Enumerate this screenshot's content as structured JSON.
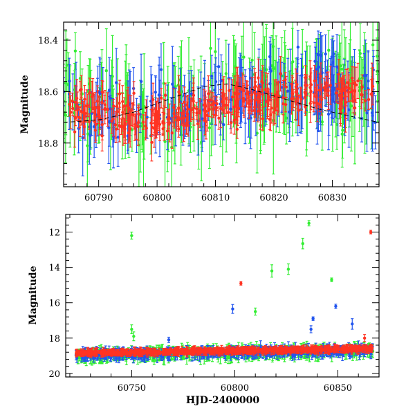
{
  "chart_data": [
    {
      "type": "scatter",
      "panel": "top",
      "title": "",
      "xlabel": "",
      "ylabel": "Magnitude",
      "xlim": [
        60784,
        60838
      ],
      "ylim": [
        18.97,
        18.33
      ],
      "y_inverted": true,
      "xticks": [
        60790,
        60800,
        60810,
        60820,
        60830
      ],
      "yticks": [
        18.4,
        18.6,
        18.8
      ],
      "grid": false,
      "legend": "none",
      "series": [
        {
          "color": "#ff3322",
          "marker": "circle-with-errorbar",
          "x_range": [
            60785,
            60837
          ],
          "y_center": 18.65,
          "y_scatter": 0.12,
          "err": 0.05
        },
        {
          "color": "#2255ee",
          "marker": "circle-with-errorbar",
          "x_range": [
            60784,
            60838
          ],
          "y_center": 18.63,
          "y_scatter": 0.2,
          "err": 0.1
        },
        {
          "color": "#33ee33",
          "marker": "circle-with-errorbar",
          "x_range": [
            60784,
            60838
          ],
          "y_center": 18.62,
          "y_scatter": 0.22,
          "err": 0.14
        }
      ],
      "model_curve": {
        "color": "#000000",
        "style": "dashed",
        "x": [
          60784,
          60790,
          60796,
          60802,
          60808,
          60812,
          60816,
          60822,
          60828,
          60834,
          60838
        ],
        "y": [
          18.72,
          18.71,
          18.68,
          18.63,
          18.58,
          18.57,
          18.59,
          18.63,
          18.67,
          18.7,
          18.72
        ]
      }
    },
    {
      "type": "scatter",
      "panel": "bottom",
      "title": "",
      "xlabel": "HJD-2400000",
      "ylabel": "Magnitude",
      "xlim": [
        60718,
        60870
      ],
      "ylim": [
        20.2,
        11.0
      ],
      "y_inverted": true,
      "xticks": [
        60750,
        60800,
        60850
      ],
      "yticks": [
        12,
        14,
        16,
        18,
        20
      ],
      "grid": false,
      "legend": "none",
      "series": [
        {
          "color": "#ff3322",
          "marker": "circle-with-errorbar",
          "x_range": [
            60723,
            60867
          ],
          "baseline": [
            [
              60723,
              18.85
            ],
            [
              60867,
              18.6
            ]
          ],
          "y_scatter": 0.15,
          "err": 0.15
        },
        {
          "color": "#2255ee",
          "marker": "circle-with-errorbar",
          "x_range": [
            60723,
            60867
          ],
          "baseline": [
            [
              60723,
              18.95
            ],
            [
              60867,
              18.7
            ]
          ],
          "y_scatter": 0.3,
          "err": 0.25
        },
        {
          "color": "#33ee33",
          "marker": "circle-with-errorbar",
          "x_range": [
            60723,
            60867
          ],
          "baseline": [
            [
              60723,
              19.0
            ],
            [
              60867,
              18.7
            ]
          ],
          "y_scatter": 0.35,
          "err": 0.3
        }
      ],
      "outliers": [
        {
          "x": 60750,
          "y": 12.2,
          "color": "#33ee33",
          "err": 0.2
        },
        {
          "x": 60750,
          "y": 17.5,
          "color": "#33ee33",
          "err": 0.25
        },
        {
          "x": 60751,
          "y": 17.9,
          "color": "#33ee33",
          "err": 0.25
        },
        {
          "x": 60768,
          "y": 18.1,
          "color": "#2255ee",
          "err": 0.15
        },
        {
          "x": 60799,
          "y": 16.35,
          "color": "#2255ee",
          "err": 0.25
        },
        {
          "x": 60803,
          "y": 14.9,
          "color": "#ff3322",
          "err": 0.1
        },
        {
          "x": 60810,
          "y": 16.5,
          "color": "#33ee33",
          "err": 0.2
        },
        {
          "x": 60818,
          "y": 14.2,
          "color": "#33ee33",
          "err": 0.35
        },
        {
          "x": 60826,
          "y": 14.1,
          "color": "#33ee33",
          "err": 0.3
        },
        {
          "x": 60833,
          "y": 12.65,
          "color": "#33ee33",
          "err": 0.3
        },
        {
          "x": 60836,
          "y": 11.5,
          "color": "#33ee33",
          "err": 0.15
        },
        {
          "x": 60837,
          "y": 17.5,
          "color": "#2255ee",
          "err": 0.2
        },
        {
          "x": 60838,
          "y": 16.9,
          "color": "#2255ee",
          "err": 0.1
        },
        {
          "x": 60847,
          "y": 14.7,
          "color": "#33ee33",
          "err": 0.1
        },
        {
          "x": 60849,
          "y": 16.2,
          "color": "#2255ee",
          "err": 0.12
        },
        {
          "x": 60857,
          "y": 17.2,
          "color": "#2255ee",
          "err": 0.3
        },
        {
          "x": 60863,
          "y": 18.0,
          "color": "#ff3322",
          "err": 0.2
        },
        {
          "x": 60866,
          "y": 12.0,
          "color": "#ff3322",
          "err": 0.1
        }
      ]
    }
  ]
}
